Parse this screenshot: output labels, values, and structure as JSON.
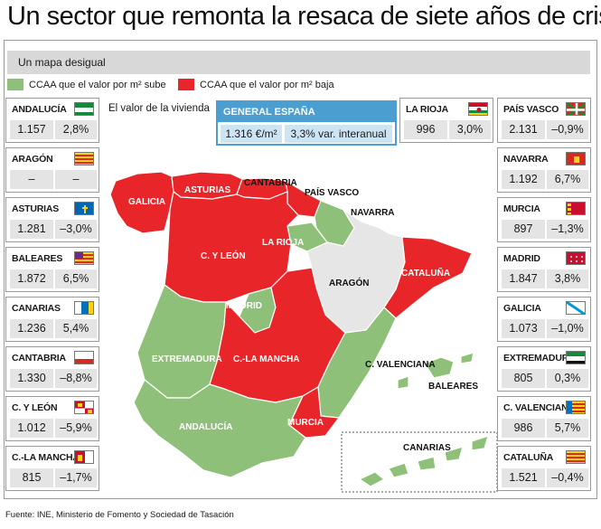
{
  "title": "Un sector que remonta la resaca de siete años de crisis",
  "subtitle": "Un mapa desigual",
  "legend": {
    "up_label": "CCAA que el valor por m² sube",
    "down_label": "CCAA que el valor por m² baja",
    "up_color": "#8fc07a",
    "down_color": "#e8262a",
    "neutral_color": "#e6e6e6"
  },
  "value_label": "El valor de la vivienda",
  "spain": {
    "label": "GENERAL ESPAÑA",
    "price": "1.316 €/m²",
    "change": "3,3% var. interanual"
  },
  "regions": {
    "andalucia": {
      "name": "ANDALUCÍA",
      "price": "1.157",
      "change": "2,8%"
    },
    "aragon": {
      "name": "ARAGÓN",
      "price": "–",
      "change": "–"
    },
    "asturias": {
      "name": "ASTURIAS",
      "price": "1.281",
      "change": "–3,0%"
    },
    "baleares": {
      "name": "BALEARES",
      "price": "1.872",
      "change": "6,5%"
    },
    "canarias": {
      "name": "CANARIAS",
      "price": "1.236",
      "change": "5,4%"
    },
    "cantabria": {
      "name": "CANTABRIA",
      "price": "1.330",
      "change": "–8,8%"
    },
    "cyleon": {
      "name": "C. Y LEÓN",
      "price": "1.012",
      "change": "–5,9%"
    },
    "clamancha": {
      "name": "C.-LA MANCHA",
      "price": "815",
      "change": "–1,7%"
    },
    "larioja": {
      "name": "LA RIOJA",
      "price": "996",
      "change": "3,0%"
    },
    "paisvasco": {
      "name": "PAÍS VASCO",
      "price": "2.131",
      "change": "–0,9%"
    },
    "navarra": {
      "name": "NAVARRA",
      "price": "1.192",
      "change": "6,7%"
    },
    "murcia": {
      "name": "MURCIA",
      "price": "897",
      "change": "–1,3%"
    },
    "madrid": {
      "name": "MADRID",
      "price": "1.847",
      "change": "3,8%"
    },
    "galicia": {
      "name": "GALICIA",
      "price": "1.073",
      "change": "–1,0%"
    },
    "extremadura": {
      "name": "EXTREMADURA",
      "price": "805",
      "change": "0,3%"
    },
    "cvalenciana": {
      "name": "C. VALENCIANA",
      "price": "986",
      "change": "5,7%"
    },
    "cataluna": {
      "name": "CATALUÑA",
      "price": "1.521",
      "change": "–0,4%"
    }
  },
  "map_labels": {
    "galicia": "GALICIA",
    "asturias": "ASTURIAS",
    "cantabria": "CANTABRIA",
    "paisvasco": "PAÍS VASCO",
    "navarra": "NAVARRA",
    "larioja": "LA RIOJA",
    "cyleon": "C. Y LEÓN",
    "aragon": "ARAGÓN",
    "cataluna": "CATALUÑA",
    "madrid": "MADRID",
    "extremadura": "EXTREMADURA",
    "clamancha": "C.-LA MANCHA",
    "cvalenciana": "C. VALENCIANA",
    "baleares": "BALEARES",
    "andalucia": "ANDALUCÍA",
    "murcia": "MURCIA",
    "canarias": "CANARIAS"
  },
  "source": "Fuente: INE, Ministerio de Fomento y Sociedad de Tasación"
}
